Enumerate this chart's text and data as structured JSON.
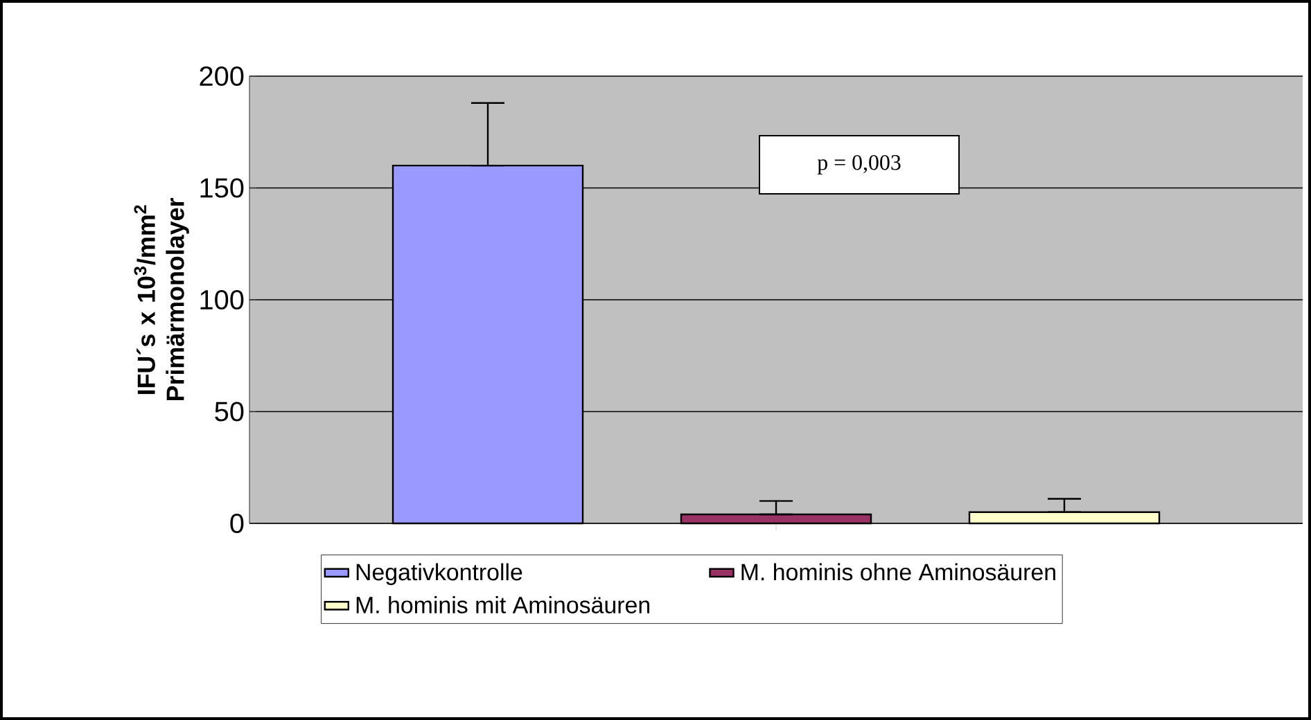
{
  "chart_data": {
    "type": "bar",
    "ylabel": "**IFU´s x 10$^{3}$/mm$^{2}$ Primärmonolayer**",
    "categories": [
      null
    ],
    "series": [
      {
        "name": "Negativkontrolle",
        "color": "#9999ff",
        "values": [
          160
        ],
        "errors": [
          [
            160,
            188
          ]
        ]
      },
      {
        "name": "M. hominis ohne Aminosäuren",
        "color": "#993366",
        "values": [
          4
        ],
        "errors": [
          [
            4,
            10
          ]
        ]
      },
      {
        "name": "M. hominis mit Aminosäuren",
        "color": "#ffffcc",
        "values": [
          5
        ],
        "errors": [
          [
            5,
            11
          ]
        ]
      }
    ],
    "ylim": [
      0,
      200
    ],
    "yticks": [
      0,
      50,
      100,
      150,
      200
    ],
    "grid": "y",
    "legend": "bottom",
    "annotations": [
      "p = 0,003"
    ]
  }
}
